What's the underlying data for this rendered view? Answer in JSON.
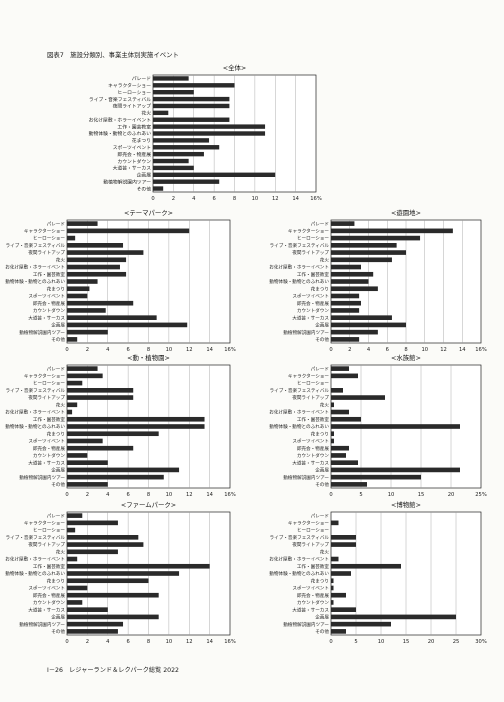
{
  "figure_title": "図表7　施設分類別、事業主体別実施イベント",
  "footer": "I－26　レジャーランド＆レクパーク総覧 2022",
  "chart_data": [
    {
      "type": "bar",
      "orientation": "horizontal",
      "title": "<全体>",
      "categories": [
        "パレード",
        "キャラクターショー",
        "ヒーローショー",
        "ライブ・音楽フェスティバル",
        "夜間ライトアップ",
        "花火",
        "お化け屋敷・ホラーイベント",
        "工作・園芸教室",
        "動物体験・動物とのふれあい",
        "花まつり",
        "スポーツイベント",
        "即売会・物産展",
        "カウントダウン",
        "大道芸・サーカス",
        "企画展",
        "動植物解説園内ツアー",
        "その他"
      ],
      "values": [
        3.5,
        8,
        4,
        7.5,
        7.5,
        1.5,
        7.5,
        11,
        11,
        5.5,
        6.5,
        5,
        3.5,
        4,
        12,
        6.5,
        1
      ],
      "xlim": [
        0,
        16
      ],
      "ticks": [
        "0",
        "2",
        "4",
        "6",
        "8",
        "10",
        "12",
        "14",
        "16%"
      ]
    },
    {
      "type": "bar",
      "orientation": "horizontal",
      "title": "<テーマパーク>",
      "categories": [
        "パレード",
        "キャラクターショー",
        "ヒーローショー",
        "ライブ・音楽フェスティバル",
        "夜間ライトアップ",
        "花火",
        "お化け屋敷・ホラーイベント",
        "工作・園芸教室",
        "動物体験・動物とのふれあい",
        "花まつり",
        "スポーツイベント",
        "即売会・物産展",
        "カウントダウン",
        "大道芸・サーカス",
        "企画展",
        "動植物解説園内ツアー",
        "その他"
      ],
      "values": [
        3,
        12,
        0.8,
        5.5,
        7.5,
        5.8,
        5.2,
        5.8,
        3,
        2.2,
        2,
        6.5,
        3.8,
        8.8,
        11.8,
        4,
        1
      ],
      "xlim": [
        0,
        16
      ],
      "ticks": [
        "0",
        "2",
        "4",
        "6",
        "8",
        "10",
        "12",
        "14",
        "16%"
      ]
    },
    {
      "type": "bar",
      "orientation": "horizontal",
      "title": "<遊園地>",
      "categories": [
        "パレード",
        "キャラクターショー",
        "ヒーローショー",
        "ライブ・音楽フェスティバル",
        "夜間ライトアップ",
        "花火",
        "お化け屋敷・ホラーイベント",
        "工作・園芸教室",
        "動物体験・動物とのふれあい",
        "花まつり",
        "スポーツイベント",
        "即売会・物産展",
        "カウントダウン",
        "大道芸・サーカス",
        "企画展",
        "動植物解説園内ツアー",
        "その他"
      ],
      "values": [
        2.5,
        13,
        9.5,
        7,
        8,
        6.5,
        3.2,
        4.5,
        4,
        5,
        3,
        3.2,
        3,
        6.5,
        8,
        5,
        3
      ],
      "xlim": [
        0,
        16
      ],
      "ticks": [
        "0",
        "2",
        "4",
        "6",
        "8",
        "10",
        "12",
        "14",
        "16%"
      ]
    },
    {
      "type": "bar",
      "orientation": "horizontal",
      "title": "<動・植物園>",
      "categories": [
        "パレード",
        "キャラクターショー",
        "ヒーローショー",
        "ライブ・音楽フェスティバル",
        "夜間ライトアップ",
        "花火",
        "お化け屋敷・ホラーイベント",
        "工作・園芸教室",
        "動物体験・動物とのふれあい",
        "花まつり",
        "スポーツイベント",
        "即売会・物産展",
        "カウントダウン",
        "大道芸・サーカス",
        "企画展",
        "動植物解説園内ツアー",
        "その他"
      ],
      "values": [
        3,
        3.5,
        1.5,
        6.5,
        6.5,
        1,
        0.5,
        13.5,
        13.5,
        9,
        3.5,
        6.5,
        2,
        4,
        11,
        9.5,
        4
      ],
      "xlim": [
        0,
        16
      ],
      "ticks": [
        "0",
        "2",
        "4",
        "6",
        "8",
        "10",
        "12",
        "14",
        "16%"
      ]
    },
    {
      "type": "bar",
      "orientation": "horizontal",
      "title": "<水族館>",
      "categories": [
        "パレード",
        "キャラクターショー",
        "ヒーローショー",
        "ライブ・音楽フェスティバル",
        "夜間ライトアップ",
        "花火",
        "お化け屋敷・ホラーイベント",
        "工作・園芸教室",
        "動物体験・動物とのふれあい",
        "花まつり",
        "スポーツイベント",
        "即売会・物産展",
        "カウントダウン",
        "大道芸・サーカス",
        "企画展",
        "動植物解説園内ツアー",
        "その他"
      ],
      "values": [
        3,
        4.5,
        0,
        2,
        9,
        0.5,
        3,
        5,
        21.5,
        0.5,
        0.5,
        3,
        2.5,
        4.5,
        21.5,
        15,
        6
      ],
      "xlim": [
        0,
        25
      ],
      "ticks": [
        "0",
        "5",
        "10",
        "15",
        "20",
        "25%"
      ]
    },
    {
      "type": "bar",
      "orientation": "horizontal",
      "title": "<ファームパーク>",
      "categories": [
        "パレード",
        "キャラクターショー",
        "ヒーローショー",
        "ライブ・音楽フェスティバル",
        "夜間ライトアップ",
        "花火",
        "お化け屋敷・ホラーイベント",
        "工作・園芸教室",
        "動物体験・動物とのふれあい",
        "花まつり",
        "スポーツイベント",
        "即売会・物産展",
        "カウントダウン",
        "大道芸・サーカス",
        "企画展",
        "動植物解説園内ツアー",
        "その他"
      ],
      "values": [
        1.5,
        5,
        0.8,
        7,
        7.5,
        5,
        1,
        14,
        11,
        8,
        2,
        9,
        1.5,
        4,
        9,
        5.5,
        5
      ],
      "xlim": [
        0,
        16
      ],
      "ticks": [
        "0",
        "2",
        "4",
        "6",
        "8",
        "10",
        "12",
        "14",
        "16%"
      ]
    },
    {
      "type": "bar",
      "orientation": "horizontal",
      "title": "<博物館>",
      "categories": [
        "パレード",
        "キャラクターショー",
        "ヒーローショー",
        "ライブ・音楽フェスティバル",
        "夜間ライトアップ",
        "花火",
        "お化け屋敷・ホラーイベント",
        "工作・園芸教室",
        "動物体験・動物とのふれあい",
        "花まつり",
        "スポーツイベント",
        "即売会・物産展",
        "カウントダウン",
        "大道芸・サーカス",
        "企画展",
        "動植物解説園内ツアー",
        "その他"
      ],
      "values": [
        0,
        1.5,
        0,
        5,
        5,
        0,
        1.5,
        14,
        4,
        0.5,
        0.5,
        3,
        0.5,
        5,
        25,
        12,
        3
      ],
      "xlim": [
        0,
        30
      ],
      "ticks": [
        "0",
        "5",
        "10",
        "15",
        "20",
        "25",
        "30%"
      ]
    }
  ]
}
